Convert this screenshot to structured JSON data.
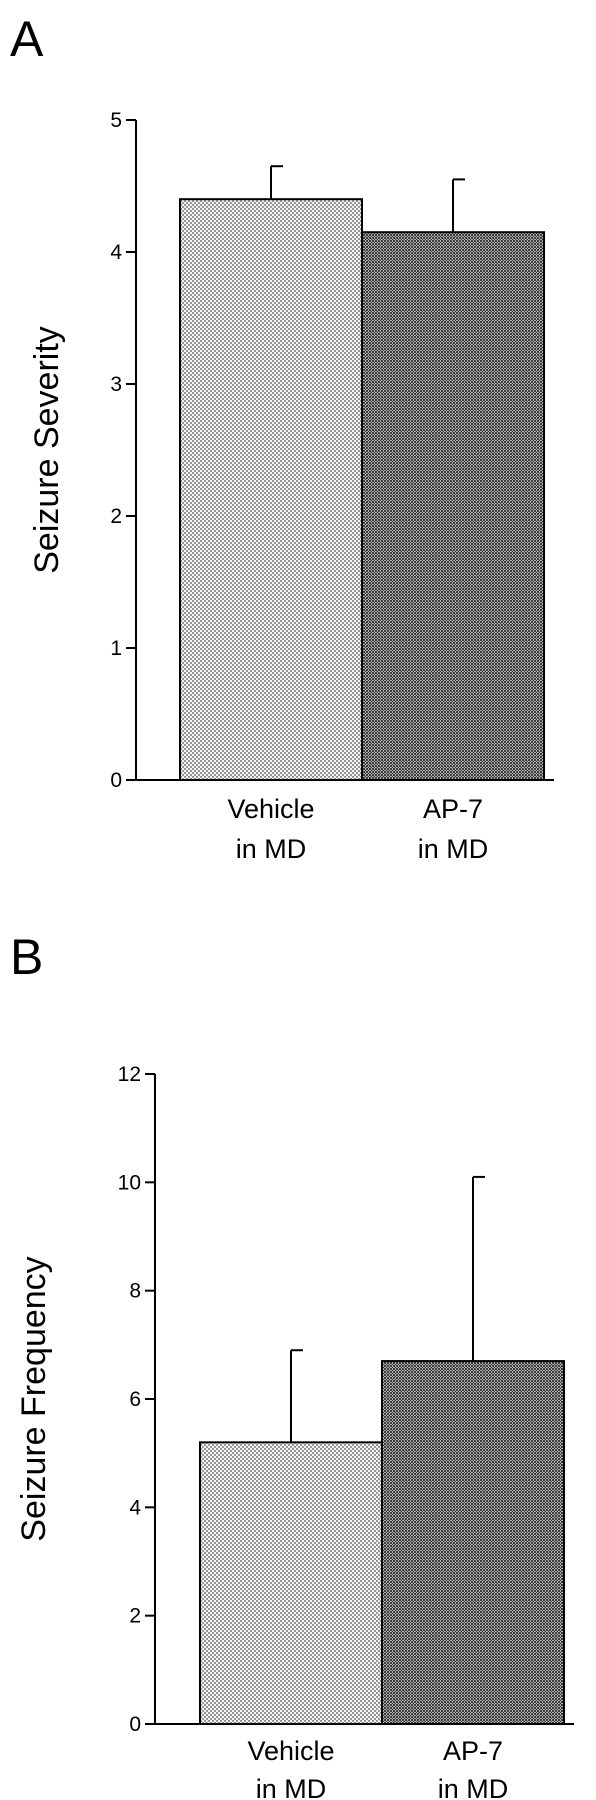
{
  "chart_data": [
    {
      "type": "bar",
      "panel": "A",
      "categories": [
        [
          "Vehicle",
          "in MD"
        ],
        [
          "AP-7",
          "in MD"
        ]
      ],
      "values": [
        4.4,
        4.15
      ],
      "errors": [
        0.25,
        0.4
      ],
      "ylabel": "Seizure Severity",
      "ylim": [
        0,
        5
      ],
      "yticks": [
        "0",
        "1",
        "2",
        "3",
        "4",
        "5"
      ],
      "grid": false,
      "colors": [
        "#d6d6d6",
        "#8a8a8a"
      ]
    },
    {
      "type": "bar",
      "panel": "B",
      "categories": [
        [
          "Vehicle",
          "in MD"
        ],
        [
          "AP-7",
          "in MD"
        ]
      ],
      "values": [
        5.2,
        6.7
      ],
      "errors": [
        1.7,
        3.4
      ],
      "ylabel": "Seizure Frequency",
      "ylim": [
        0,
        12
      ],
      "yticks": [
        "0",
        "2",
        "4",
        "6",
        "8",
        "10",
        "12"
      ],
      "grid": false,
      "colors": [
        "#d6d6d6",
        "#8a8a8a"
      ]
    }
  ]
}
